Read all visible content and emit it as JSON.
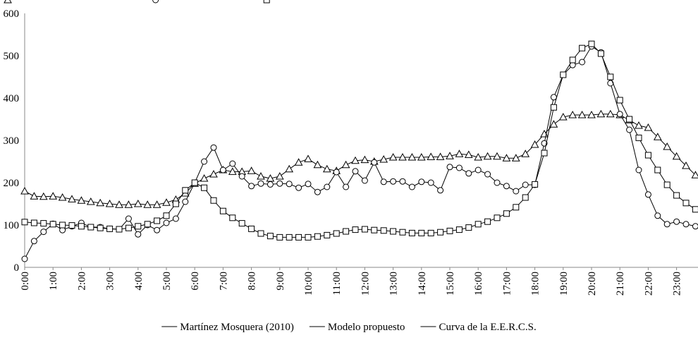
{
  "chart_data": {
    "type": "line",
    "categories": [
      "0:00",
      null,
      null,
      "1:00",
      null,
      null,
      "2:00",
      null,
      null,
      "3:00",
      null,
      null,
      "4:00",
      null,
      null,
      "5:00",
      null,
      null,
      "6:00",
      null,
      null,
      "7:00",
      null,
      null,
      "8:00",
      null,
      null,
      "9:00",
      null,
      null,
      "10:00",
      null,
      null,
      "11:00",
      null,
      null,
      "12:00",
      null,
      null,
      "13:00",
      null,
      null,
      "14:00",
      null,
      null,
      "15:00",
      null,
      null,
      "16:00",
      null,
      null,
      "17:00",
      null,
      null,
      "18:00",
      null,
      null,
      "19:00",
      null,
      null,
      "20:00",
      null,
      null,
      "21:00",
      null,
      null,
      "22:00",
      null,
      null,
      "23:00",
      null,
      null
    ],
    "series": [
      {
        "name": "Martínez Mosquera (2010)",
        "color": "#000000",
        "marker": "triangle",
        "values": [
          180,
          168,
          167,
          168,
          165,
          161,
          158,
          155,
          152,
          150,
          148,
          148,
          150,
          148,
          148,
          153,
          160,
          175,
          198,
          210,
          220,
          230,
          226,
          226,
          228,
          215,
          210,
          215,
          232,
          248,
          256,
          242,
          232,
          228,
          242,
          252,
          254,
          250,
          255,
          260,
          260,
          260,
          260,
          261,
          261,
          263,
          268,
          266,
          260,
          262,
          262,
          258,
          258,
          268,
          290,
          315,
          338,
          355,
          360,
          360,
          360,
          362,
          362,
          360,
          348,
          335,
          330,
          308,
          285,
          262,
          240,
          218
        ]
      },
      {
        "name": "Modelo propuesto",
        "color": "#000000",
        "marker": "circle",
        "values": [
          20,
          62,
          84,
          103,
          88,
          97,
          105,
          95,
          95,
          91,
          90,
          115,
          78,
          100,
          88,
          105,
          115,
          155,
          200,
          250,
          283,
          230,
          245,
          215,
          192,
          198,
          196,
          198,
          197,
          188,
          197,
          178,
          190,
          225,
          190,
          227,
          205,
          248,
          202,
          203,
          203,
          190,
          202,
          200,
          182,
          237,
          235,
          222,
          230,
          220,
          200,
          192,
          180,
          195,
          195,
          293,
          402,
          455,
          478,
          485,
          522,
          508,
          435,
          362,
          325,
          230,
          172,
          122,
          102,
          108,
          102,
          97
        ]
      },
      {
        "name": "Curva de la E.E.R.C.S.",
        "color": "#000000",
        "marker": "square",
        "values": [
          107,
          105,
          104,
          102,
          100,
          99,
          97,
          95,
          93,
          91,
          90,
          93,
          97,
          102,
          110,
          122,
          150,
          182,
          200,
          188,
          158,
          133,
          117,
          104,
          91,
          80,
          74,
          71,
          71,
          71,
          71,
          73,
          76,
          80,
          85,
          89,
          90,
          88,
          87,
          85,
          83,
          81,
          81,
          81,
          83,
          86,
          89,
          94,
          102,
          108,
          117,
          127,
          142,
          165,
          196,
          270,
          378,
          455,
          490,
          518,
          528,
          505,
          450,
          395,
          350,
          306,
          265,
          230,
          195,
          170,
          152,
          137
        ]
      }
    ],
    "ylim": [
      0,
      600
    ],
    "yticks": [
      0,
      100,
      200,
      300,
      400,
      500,
      600
    ],
    "grid": false,
    "legend": "bottom"
  }
}
